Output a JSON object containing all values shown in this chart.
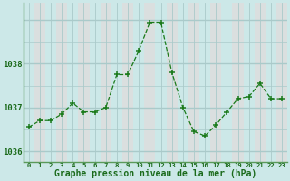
{
  "x": [
    0,
    1,
    2,
    3,
    4,
    5,
    6,
    7,
    8,
    9,
    10,
    11,
    12,
    13,
    14,
    15,
    16,
    17,
    18,
    19,
    20,
    21,
    22,
    23
  ],
  "y": [
    1036.55,
    1036.7,
    1036.7,
    1036.85,
    1037.1,
    1036.9,
    1036.9,
    1037.0,
    1037.75,
    1037.75,
    1038.3,
    1038.95,
    1038.95,
    1037.8,
    1037.0,
    1036.45,
    1036.35,
    1036.6,
    1036.9,
    1037.2,
    1037.25,
    1037.55,
    1037.2,
    1037.2
  ],
  "line_color": "#1a7a1a",
  "marker_color": "#1a7a1a",
  "bg_color": "#cce8e8",
  "strip_color": "#dde8f0",
  "grid_h_color": "#aacaca",
  "xlabel": "Graphe pression niveau de la mer (hPa)",
  "xlabel_color": "#1a6a1a",
  "tick_color": "#1a6a1a",
  "yticks": [
    1036,
    1037,
    1038
  ],
  "ylim": [
    1035.75,
    1039.4
  ],
  "xlim": [
    -0.5,
    23.5
  ],
  "spine_color": "#5a9a5a"
}
